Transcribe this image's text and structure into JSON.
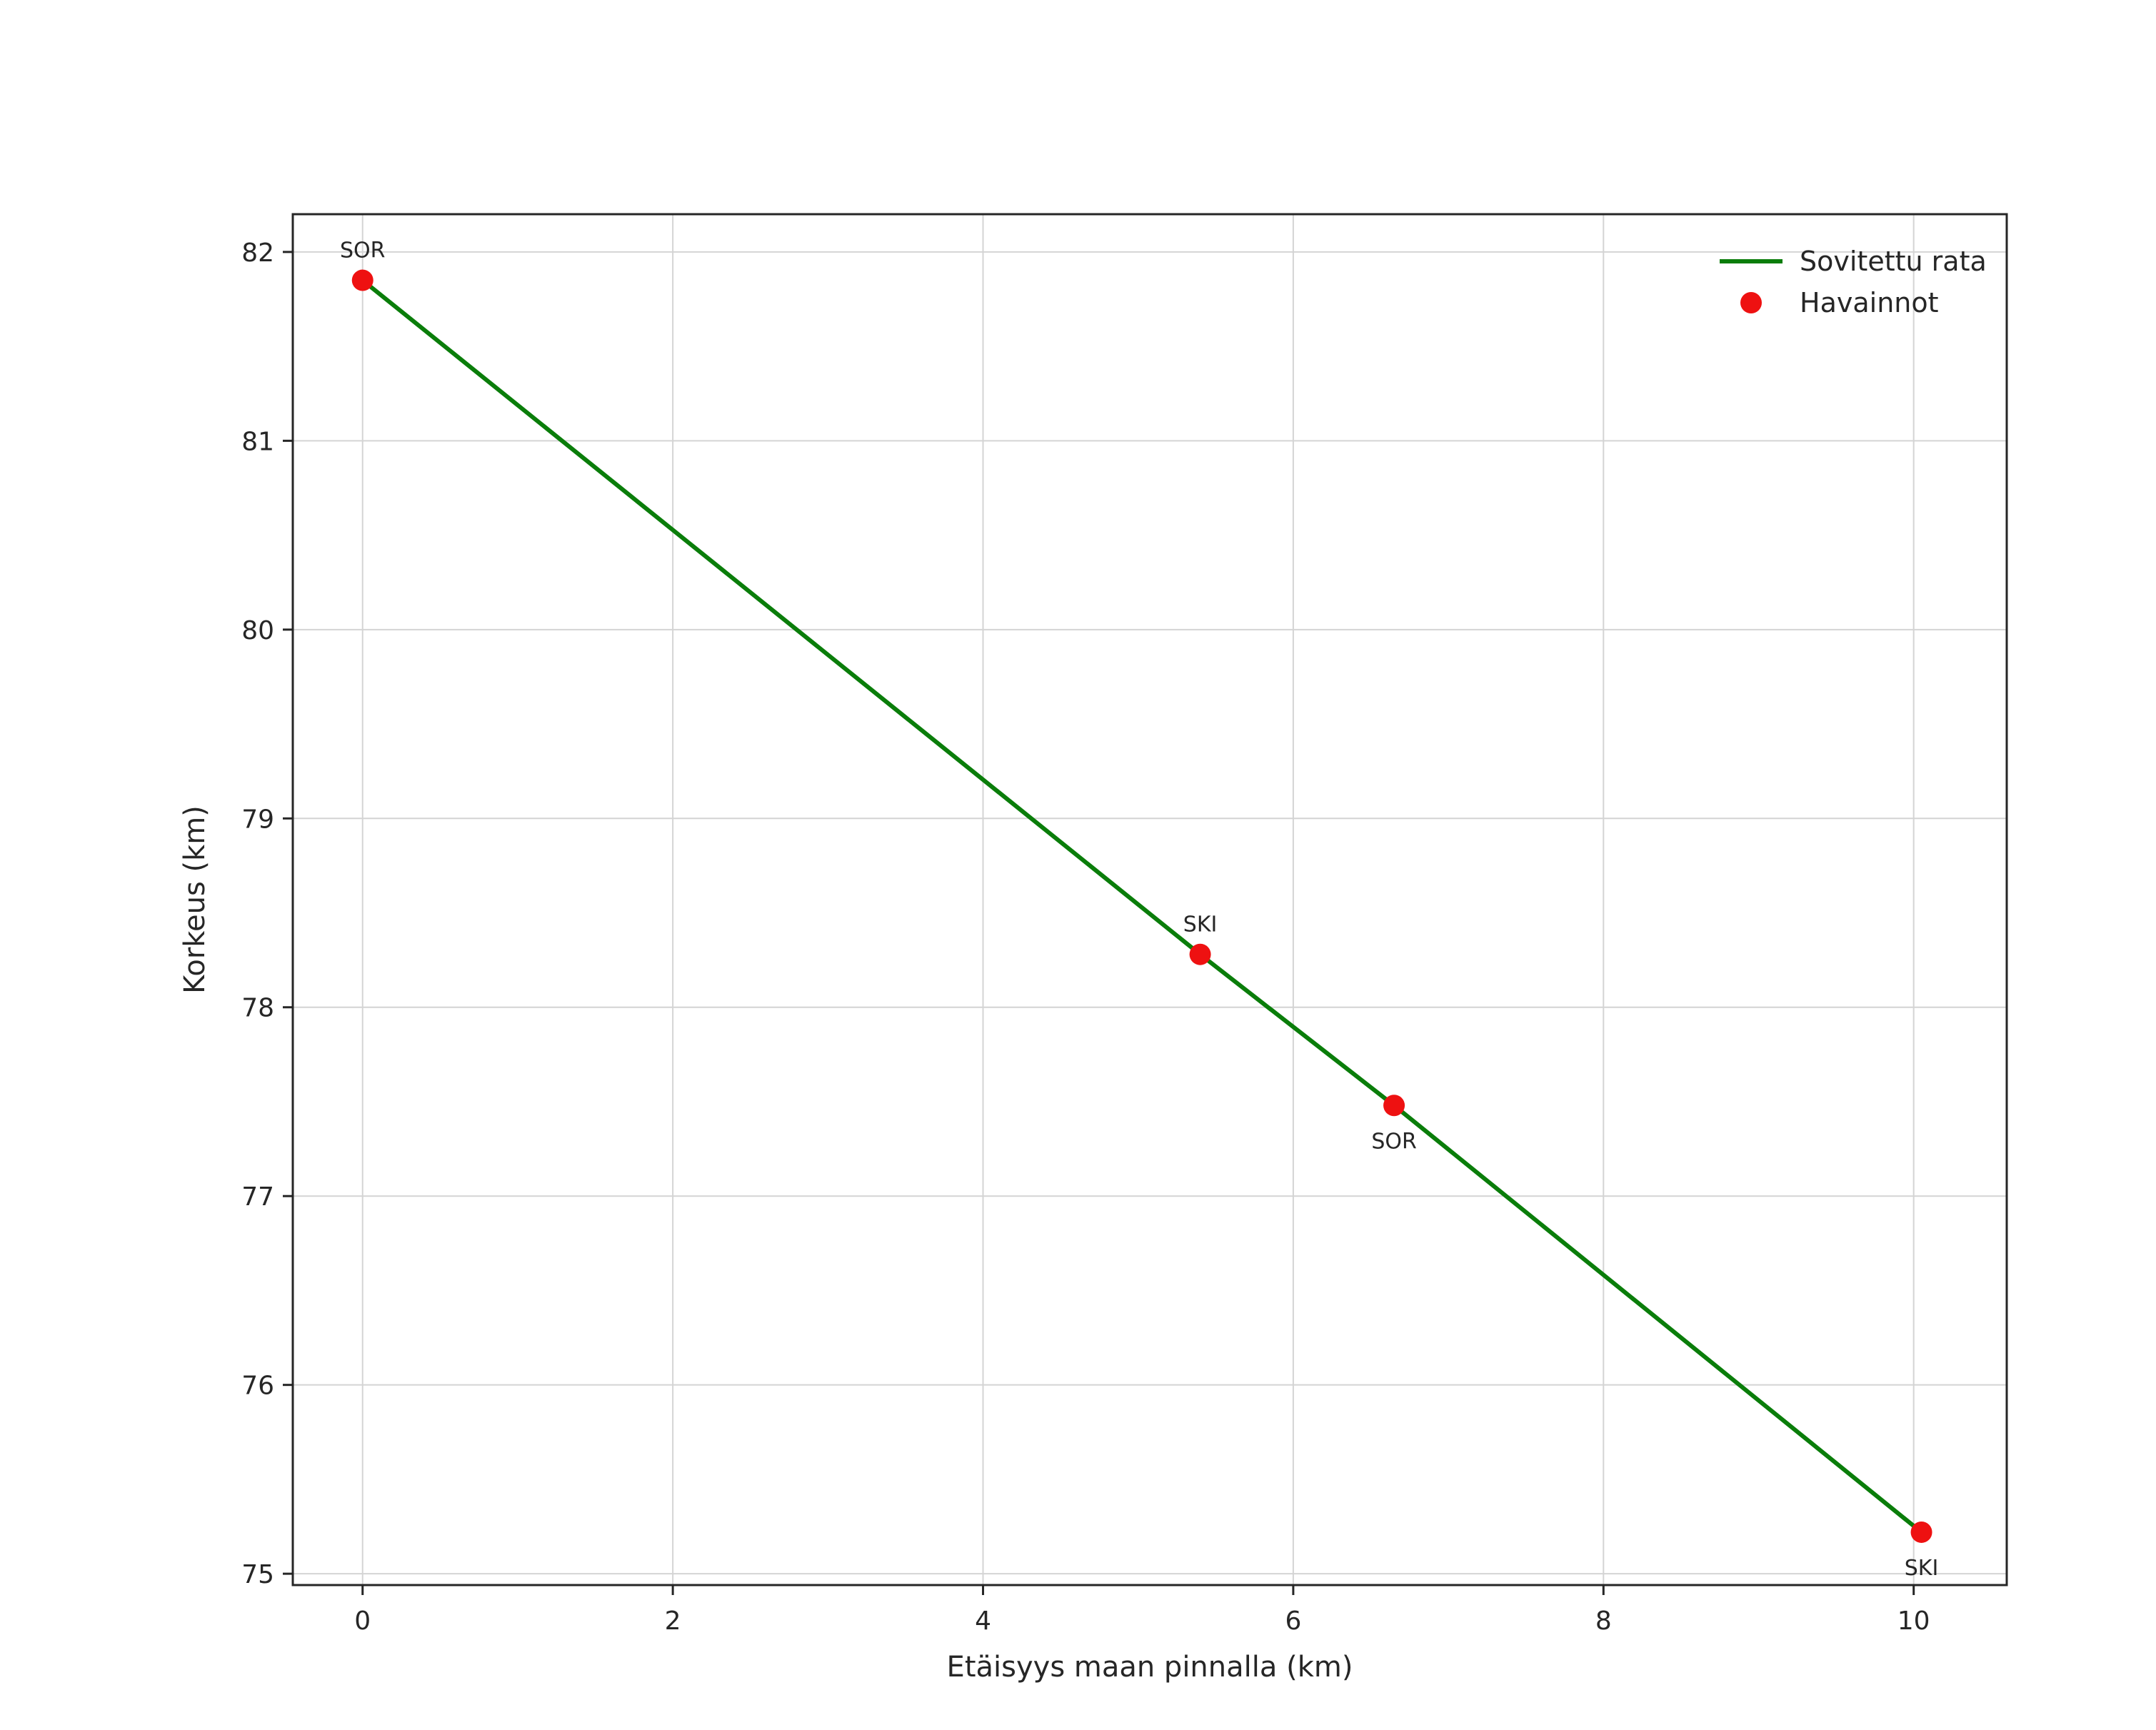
{
  "chart_data": {
    "type": "line",
    "title": "",
    "xlabel": "Etäisyys maan pinnalla (km)",
    "ylabel": "Korkeus (km)",
    "xlim": [
      -0.45,
      10.6
    ],
    "ylim": [
      74.94,
      82.2
    ],
    "xticks": [
      0,
      2,
      4,
      6,
      8,
      10
    ],
    "yticks": [
      75,
      76,
      77,
      78,
      79,
      80,
      81,
      82
    ],
    "grid": true,
    "legend_position": "upper right",
    "colors": {
      "line": "#0a7d0a",
      "marker": "#ee1111",
      "grid": "#d4d4d4",
      "frame": "#262626",
      "text": "#262626"
    },
    "series": [
      {
        "name": "Sovitettu rata",
        "type": "line",
        "x": [
          0,
          5.4,
          6.65,
          10.05
        ],
        "y": [
          81.85,
          78.28,
          77.48,
          75.22
        ]
      },
      {
        "name": "Havainnot",
        "type": "scatter",
        "points": [
          {
            "x": 0,
            "y": 81.85,
            "label": "SOR",
            "label_position": "above"
          },
          {
            "x": 5.4,
            "y": 78.28,
            "label": "SKI",
            "label_position": "above"
          },
          {
            "x": 6.65,
            "y": 77.48,
            "label": "SOR",
            "label_position": "below"
          },
          {
            "x": 10.05,
            "y": 75.22,
            "label": "SKI",
            "label_position": "below"
          }
        ]
      }
    ]
  }
}
